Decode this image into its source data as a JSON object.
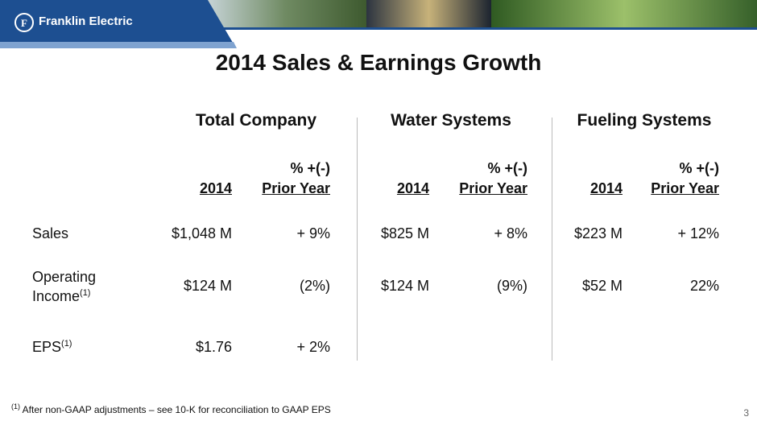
{
  "header": {
    "logo": "Franklin Electric",
    "title": "2014 Sales & Earnings Growth"
  },
  "table": {
    "groups": [
      "Total Company",
      "Water Systems",
      "Fueling Systems"
    ],
    "column_headers": [
      {
        "year": "2014",
        "change_line1": "% +(-)",
        "change_line2": "Prior Year"
      },
      {
        "year": "2014",
        "change_line1": "% +(-)",
        "change_line2": "Prior Year"
      },
      {
        "year": "2014",
        "change_line1": "% +(-)",
        "change_line2": "Prior Year"
      }
    ],
    "rows": [
      {
        "label": "Sales",
        "cells": [
          "$1,048 M",
          "+ 9%",
          "$825 M",
          "+ 8%",
          "$223 M",
          "+ 12%"
        ]
      },
      {
        "label_line1": "Operating",
        "label_line2": "Income",
        "note": "(1)",
        "cells": [
          "$124 M",
          "(2%)",
          "$124 M",
          "(9%)",
          "$52 M",
          "22%"
        ]
      },
      {
        "label": "EPS",
        "note": "(1)",
        "cells": [
          "$1.76",
          "+ 2%"
        ]
      }
    ]
  },
  "footnote": {
    "marker": "(1)",
    "text": "After non-GAAP adjustments – see 10-K for reconciliation to GAAP EPS"
  },
  "page_number": "3"
}
